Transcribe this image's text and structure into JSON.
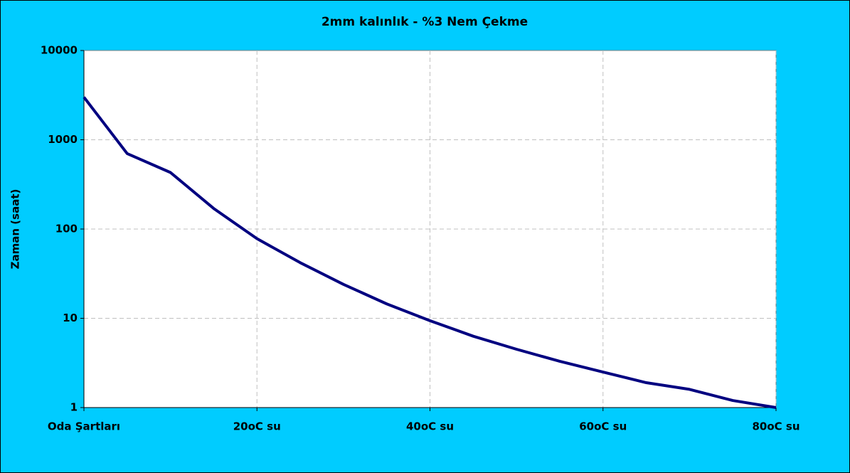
{
  "chart_data": {
    "type": "line",
    "title": "2mm kalınlık - %3 Nem Çekme",
    "y_label": "Zaman (saat)",
    "categories": [
      "Oda Şartları",
      null,
      null,
      null,
      "20oC su",
      null,
      null,
      null,
      "40oC su",
      null,
      null,
      null,
      "60oC su",
      null,
      null,
      null,
      "80oC su"
    ],
    "series": [
      {
        "name": "2mm",
        "color": "#000080",
        "values": [
          3000,
          700,
          430,
          170,
          78,
          42,
          24,
          14.5,
          9.4,
          6.3,
          4.5,
          3.3,
          2.5,
          1.9,
          1.6,
          1.2,
          1
        ]
      }
    ],
    "ylim": [
      1,
      10000
    ],
    "yticks": [
      1,
      10,
      100,
      1000,
      10000
    ],
    "log": true,
    "grid": true,
    "legend": false
  }
}
